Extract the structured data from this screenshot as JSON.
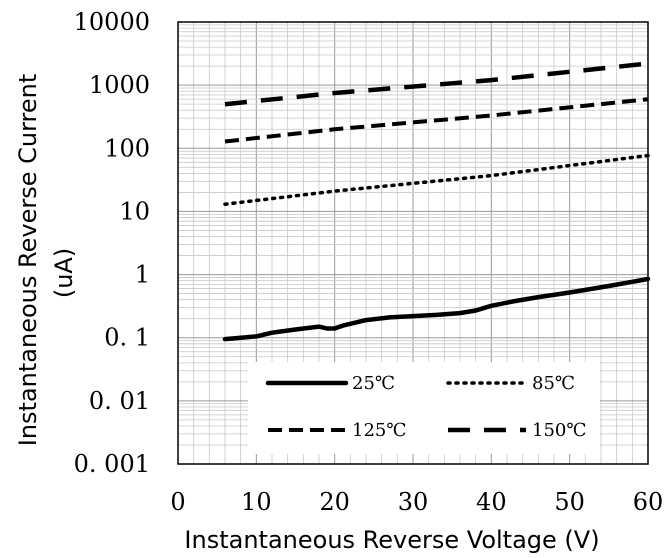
{
  "chart_data": {
    "type": "line",
    "title": "",
    "xlabel": "Instantaneous Reverse Voltage (V)",
    "ylabel_line1": "Instantaneous Reverse Current",
    "ylabel_line2": "(uA)",
    "x_scale": "linear",
    "y_scale": "log",
    "xlim": [
      0,
      60
    ],
    "ylim": [
      0.001,
      10000
    ],
    "grid": true,
    "legend_position": "bottom-center-inside",
    "x_ticks": [
      "0",
      "10",
      "20",
      "30",
      "40",
      "50",
      "60"
    ],
    "x_tick_values": [
      0,
      10,
      20,
      30,
      40,
      50,
      60
    ],
    "y_ticks": [
      "0. 001",
      "0. 01",
      "0. 1",
      "1",
      "10",
      "100",
      "1000",
      "10000"
    ],
    "y_tick_values": [
      0.001,
      0.01,
      0.1,
      1,
      10,
      100,
      1000,
      10000
    ],
    "series": [
      {
        "name": "25℃",
        "style": "solid",
        "x": [
          6,
          10,
          12,
          15,
          18,
          19,
          20,
          21,
          24,
          27,
          30,
          33,
          36,
          38,
          40,
          43,
          46,
          50,
          55,
          60
        ],
        "y": [
          0.095,
          0.105,
          0.12,
          0.135,
          0.15,
          0.14,
          0.14,
          0.155,
          0.19,
          0.21,
          0.22,
          0.23,
          0.245,
          0.27,
          0.32,
          0.38,
          0.44,
          0.52,
          0.66,
          0.85
        ]
      },
      {
        "name": "85℃",
        "style": "dotted",
        "x": [
          6,
          20,
          40,
          60
        ],
        "y": [
          13,
          21,
          37,
          77
        ]
      },
      {
        "name": "125℃",
        "style": "dashed",
        "x": [
          6,
          20,
          40,
          60
        ],
        "y": [
          128,
          200,
          330,
          600
        ]
      },
      {
        "name": "150℃",
        "style": "long-dashed",
        "x": [
          6,
          20,
          40,
          60
        ],
        "y": [
          500,
          750,
          1200,
          2200
        ]
      }
    ]
  }
}
